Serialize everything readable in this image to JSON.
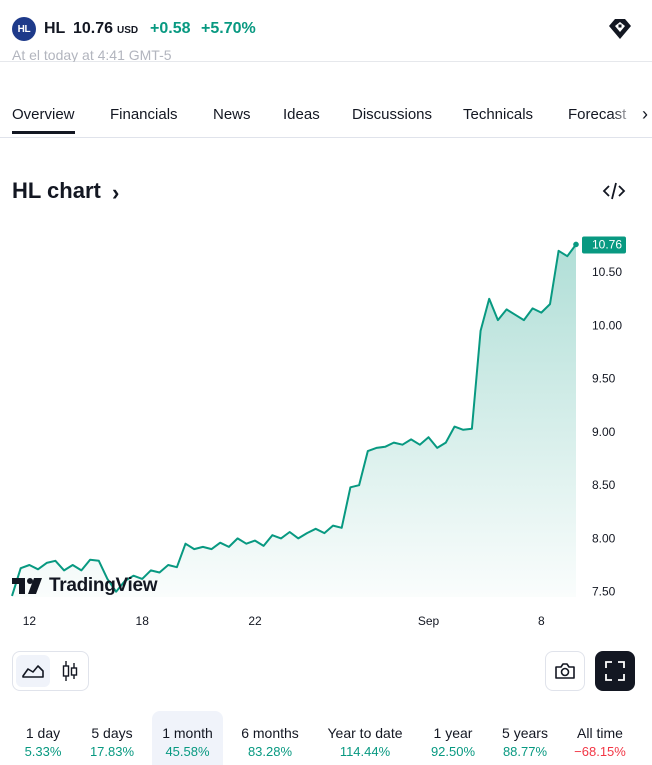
{
  "header": {
    "logo_text": "HL",
    "ticker": "HL",
    "price": "10.76",
    "currency": "USD",
    "change": "+0.58",
    "change_pct": "+5.70%",
    "icon": "diamond-badge-icon",
    "partial_line": "At el today at 4:41 GMT-5"
  },
  "tabs": [
    {
      "label": "Overview",
      "active": true
    },
    {
      "label": "Financials",
      "active": false
    },
    {
      "label": "News",
      "active": false
    },
    {
      "label": "Ideas",
      "active": false
    },
    {
      "label": "Discussions",
      "active": false
    },
    {
      "label": "Technicals",
      "active": false
    },
    {
      "label": "Forecast",
      "active": false
    }
  ],
  "chart_section": {
    "title": "HL chart",
    "title_chevron": "›",
    "embed_icon": "code-embed-icon",
    "watermark": "TradingView"
  },
  "chart_data": {
    "type": "area",
    "series": [
      {
        "values": [
          7.46,
          7.72,
          7.75,
          7.71,
          7.77,
          7.79,
          7.7,
          7.75,
          7.7,
          7.8,
          7.79,
          7.62,
          7.5,
          7.6,
          7.65,
          7.62,
          7.7,
          7.68,
          7.75,
          7.73,
          7.95,
          7.9,
          7.92,
          7.9,
          7.96,
          7.92,
          8.0,
          7.95,
          7.98,
          7.93,
          8.03,
          8.0,
          8.06,
          8.0,
          8.05,
          8.09,
          8.05,
          8.12,
          8.1,
          8.48,
          8.5,
          8.82,
          8.85,
          8.86,
          8.9,
          8.88,
          8.93,
          8.88,
          8.95,
          8.85,
          8.9,
          9.05,
          9.02,
          9.03,
          9.95,
          10.25,
          10.05,
          10.15,
          10.1,
          10.05,
          10.16,
          10.12,
          10.2,
          10.7,
          10.65,
          10.76
        ]
      }
    ],
    "x_ticks": [
      "12",
      "18",
      "22",
      "Sep",
      "8"
    ],
    "y_ticks": [
      "10.50",
      "10.00",
      "9.50",
      "9.00",
      "8.50",
      "8.00",
      "7.50"
    ],
    "ylim": [
      7.45,
      10.83
    ],
    "last_value_label": "10.76",
    "colors": {
      "line": "#089981",
      "fill_top": "#089981",
      "label_bg": "#089981"
    },
    "grid": false
  },
  "controls": {
    "area_icon": "area-chart-icon",
    "candle_icon": "candlestick-icon",
    "camera_icon": "camera-icon",
    "fullscreen_icon": "fullscreen-icon"
  },
  "periods": [
    {
      "label": "1 day",
      "value": "5.33%",
      "tone": "pos",
      "active": false
    },
    {
      "label": "5 days",
      "value": "17.83%",
      "tone": "pos",
      "active": false
    },
    {
      "label": "1 month",
      "value": "45.58%",
      "tone": "pos",
      "active": true
    },
    {
      "label": "6 months",
      "value": "83.28%",
      "tone": "pos",
      "active": false
    },
    {
      "label": "Year to date",
      "value": "114.44%",
      "tone": "pos",
      "active": false
    },
    {
      "label": "1 year",
      "value": "92.50%",
      "tone": "pos",
      "active": false
    },
    {
      "label": "5 years",
      "value": "88.77%",
      "tone": "pos",
      "active": false
    },
    {
      "label": "All time",
      "value": "−68.15%",
      "tone": "neg",
      "active": false
    }
  ]
}
